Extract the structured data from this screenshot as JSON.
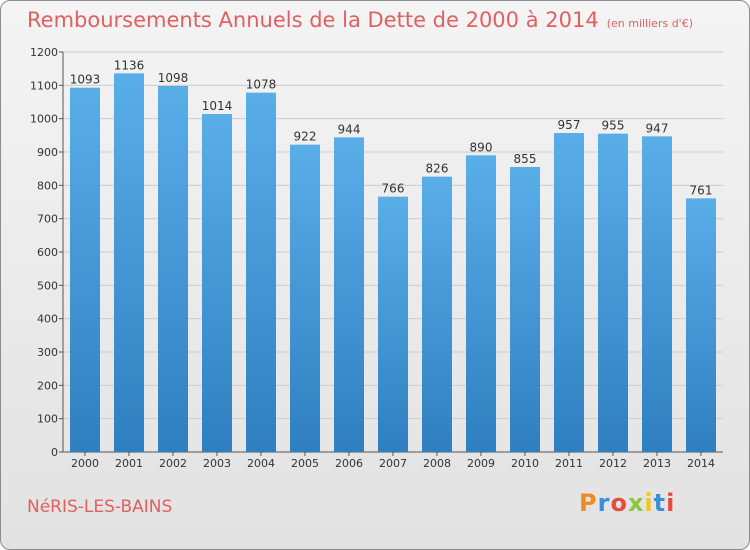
{
  "header": {
    "title": "Remboursements Annuels de la Dette de 2000 à 2014",
    "subtitle": "(en milliers d'€)"
  },
  "footer": {
    "place": "NéRIS-LES-BAINS",
    "logo": "Proxiti"
  },
  "colors": {
    "title": "#e06060",
    "bar_top": "#5aaee8",
    "bar_bottom": "#2f7fc0"
  },
  "chart_data": {
    "type": "bar",
    "title": "Remboursements Annuels de la Dette de 2000 à 2014",
    "subtitle": "(en milliers d'€)",
    "categories": [
      "2000",
      "2001",
      "2002",
      "2003",
      "2004",
      "2005",
      "2006",
      "2007",
      "2008",
      "2009",
      "2010",
      "2011",
      "2012",
      "2013",
      "2014"
    ],
    "values": [
      1093,
      1136,
      1098,
      1014,
      1078,
      922,
      944,
      766,
      826,
      890,
      855,
      957,
      955,
      947,
      761
    ],
    "ylim": [
      0,
      1200
    ],
    "yticks": [
      0,
      100,
      200,
      300,
      400,
      500,
      600,
      700,
      800,
      900,
      1000,
      1100,
      1200
    ],
    "grid": true,
    "legend": "none"
  }
}
